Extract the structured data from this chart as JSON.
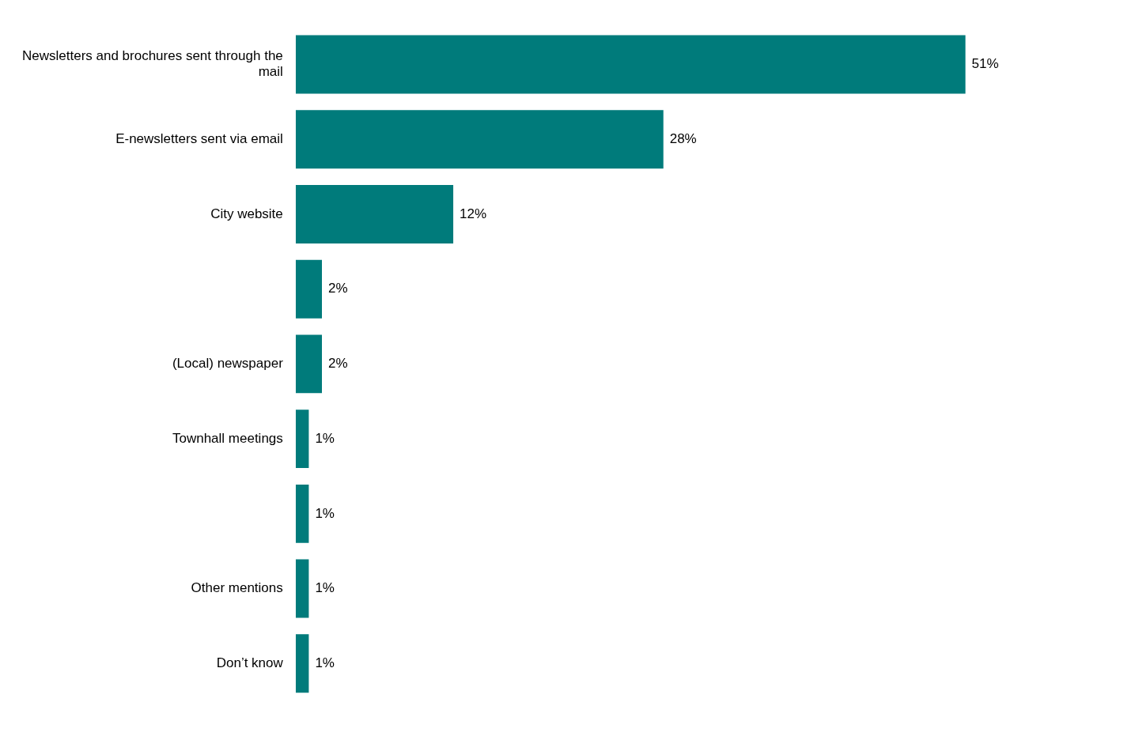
{
  "chart_data": {
    "type": "bar",
    "orientation": "horizontal",
    "categories": [
      "Newsletters and brochures sent through the mail",
      "E-newsletters sent via email",
      "City website",
      null,
      "(Local) newspaper",
      "Townhall meetings",
      null,
      "Other mentions",
      "Don’t know"
    ],
    "values": [
      51,
      28,
      12,
      2,
      2,
      1,
      1,
      1,
      1
    ],
    "value_labels": [
      "51%",
      "28%",
      "12%",
      "2%",
      "2%",
      "1%",
      "1%",
      "1%",
      "1%"
    ],
    "color": "#007b7b",
    "tick_labels": "y"
  }
}
